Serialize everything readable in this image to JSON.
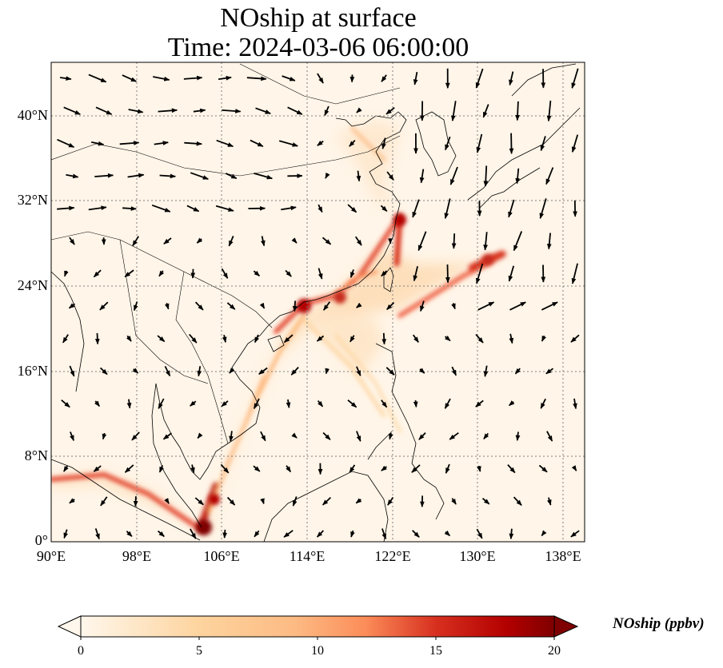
{
  "title": {
    "line1": "NOship at surface",
    "line2": "Time: 2024-03-06 06:00:00"
  },
  "map": {
    "projection": "PlateCarree",
    "lon_range": [
      90,
      140
    ],
    "lat_range": [
      0,
      45
    ],
    "gridlines": true,
    "gridline_style": "dotted gray",
    "coastlines": true,
    "borders": true,
    "xticks": [
      {
        "value": 90,
        "label": "90°E"
      },
      {
        "value": 98,
        "label": "98°E"
      },
      {
        "value": 106,
        "label": "106°E"
      },
      {
        "value": 114,
        "label": "114°E"
      },
      {
        "value": 122,
        "label": "122°E"
      },
      {
        "value": 130,
        "label": "130°E"
      },
      {
        "value": 138,
        "label": "138°E"
      }
    ],
    "yticks": [
      {
        "value": 0,
        "label": "0°"
      },
      {
        "value": 8,
        "label": "8°N"
      },
      {
        "value": 16,
        "label": "16°N"
      },
      {
        "value": 24,
        "label": "24°N"
      },
      {
        "value": 32,
        "label": "32°N"
      },
      {
        "value": 40,
        "label": "40°N"
      }
    ],
    "field": "NOship",
    "colormap": "OrRd",
    "colors": {
      "low": "#fff7ec",
      "mid": "#fdbb84",
      "high": "#d7301f",
      "max": "#7f0000",
      "land_line": "#000000"
    }
  },
  "colorbar": {
    "label": "NOship (ppbv)",
    "range": [
      0,
      20
    ],
    "ticks": [
      {
        "value": 0,
        "label": "0"
      },
      {
        "value": 5,
        "label": "5"
      },
      {
        "value": 10,
        "label": "10"
      },
      {
        "value": 15,
        "label": "15"
      },
      {
        "value": 20,
        "label": "20"
      }
    ],
    "extend": "both"
  }
}
